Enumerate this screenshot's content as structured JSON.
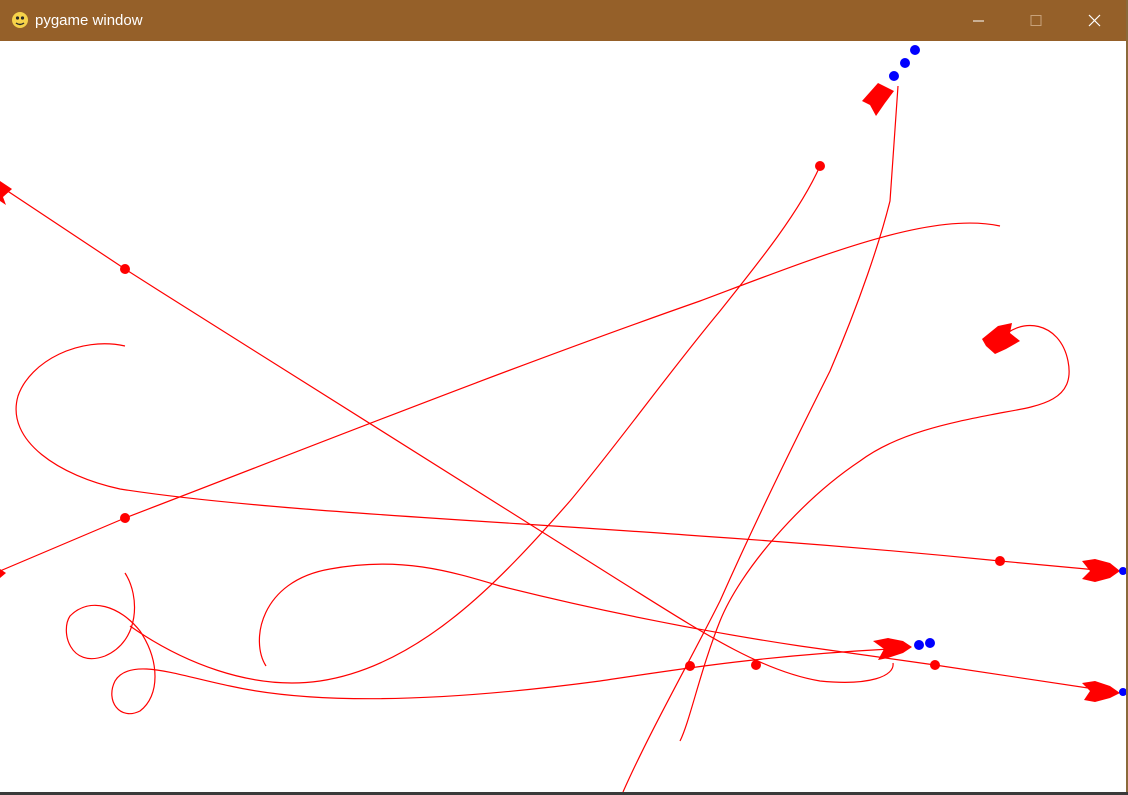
{
  "window": {
    "title": "pygame window",
    "title_bar_color": "#956029"
  },
  "controls": {
    "minimize_icon": "minimize-icon",
    "maximize_icon": "maximize-icon",
    "close_icon": "close-icon"
  },
  "game": {
    "background_color": "#ffffff",
    "missile_color": "#ff0000",
    "trail_color": "#ff0000",
    "exhaust_color": "#0000ff",
    "missile_count": 8
  }
}
